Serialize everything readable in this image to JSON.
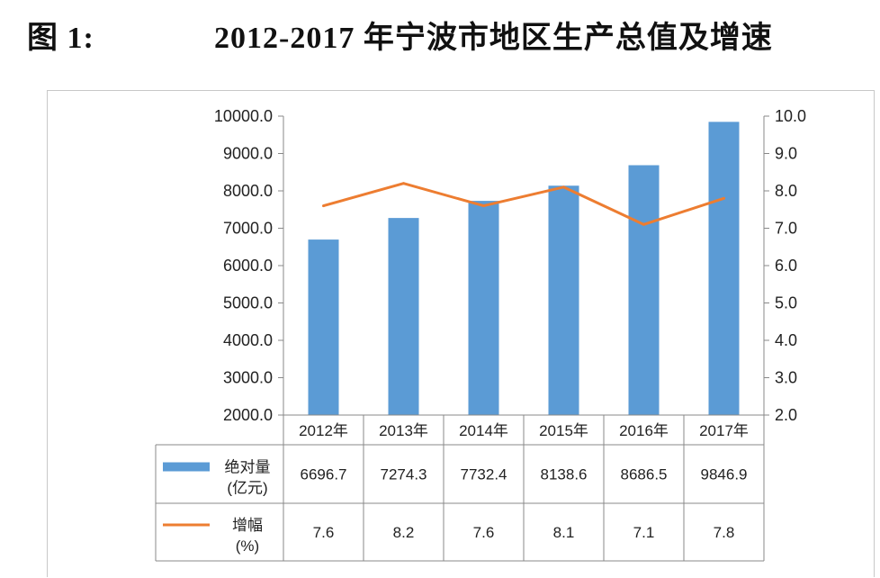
{
  "figure_label": "图 1:",
  "title": "2012-2017 年宁波市地区生产总值及增速",
  "chart_data": {
    "type": "bar",
    "title": "2012-2017 年宁波市地区生产总值及增速",
    "categories": [
      "2012年",
      "2013年",
      "2014年",
      "2015年",
      "2016年",
      "2017年"
    ],
    "series": [
      {
        "name": "绝对量(亿元)",
        "label_lines": [
          "绝对量",
          "(亿元)"
        ],
        "kind": "bar",
        "axis": "left",
        "values": [
          6696.7,
          7274.3,
          7732.4,
          8138.6,
          8686.5,
          9846.9
        ],
        "display": [
          "6696.7",
          "7274.3",
          "7732.4",
          "8138.6",
          "8686.5",
          "9846.9"
        ],
        "color": "#5b9bd5"
      },
      {
        "name": "增幅(%)",
        "label_lines": [
          "增幅",
          "(%)"
        ],
        "kind": "line",
        "axis": "right",
        "values": [
          7.6,
          8.2,
          7.6,
          8.1,
          7.1,
          7.8
        ],
        "display": [
          "7.6",
          "8.2",
          "7.6",
          "8.1",
          "7.1",
          "7.8"
        ],
        "color": "#ed7d31"
      }
    ],
    "y_left": {
      "min": 2000,
      "max": 10000,
      "ticks": [
        "2000.0",
        "3000.0",
        "4000.0",
        "5000.0",
        "6000.0",
        "7000.0",
        "8000.0",
        "9000.0",
        "10000.0"
      ]
    },
    "y_right": {
      "min": 2,
      "max": 10,
      "ticks": [
        "2.0",
        "3.0",
        "4.0",
        "5.0",
        "6.0",
        "7.0",
        "8.0",
        "9.0",
        "10.0"
      ]
    },
    "grid": false,
    "legend": "data-table"
  }
}
